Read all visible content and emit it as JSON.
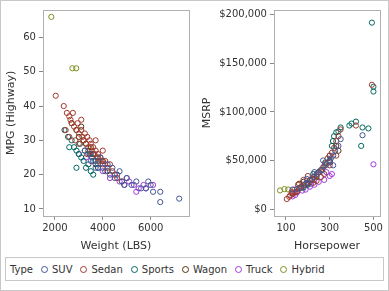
{
  "chart_data": [
    {
      "type": "scatter",
      "x_label": "Weight (LBS)",
      "y_label": "MPG (Highway)",
      "xlim": [
        1500,
        7600
      ],
      "xticks": [
        2000,
        4000,
        6000
      ],
      "ylim": [
        8,
        68
      ],
      "yticks": [
        10,
        20,
        30,
        40,
        50,
        60
      ],
      "grid": false,
      "legend": "bottom",
      "series": [
        {
          "name": "SUV",
          "color": "#445694",
          "marker": "circle",
          "x": [
            3250,
            3500,
            3600,
            3800,
            4000,
            4100,
            4300,
            4400,
            4500,
            4600,
            4800,
            4900,
            5000,
            5200,
            5400,
            5600,
            5800,
            6000,
            6400,
            5900,
            3900,
            4200,
            4700,
            3700,
            6100,
            6400,
            7190
          ],
          "values": [
            27,
            26,
            24,
            23,
            22,
            21,
            20,
            22,
            19,
            20,
            18,
            17,
            19,
            17,
            18,
            16,
            16,
            17,
            15,
            18,
            25,
            23,
            21,
            22,
            15,
            12,
            13
          ]
        },
        {
          "name": "Sedan",
          "color": "#A23A2E",
          "marker": "circle",
          "x": [
            2035,
            2370,
            2500,
            2600,
            2650,
            2700,
            2750,
            2800,
            2900,
            2950,
            3000,
            3100,
            3150,
            3200,
            3250,
            3300,
            3350,
            3400,
            3450,
            3500,
            3550,
            3600,
            3650,
            3700,
            3750,
            3800,
            3850,
            3900,
            3950,
            4000,
            4100,
            4200,
            4300,
            4400,
            4500,
            2450,
            2600,
            3000,
            3350,
            3700,
            4000,
            3100,
            2850,
            4600,
            4800
          ],
          "values": [
            43,
            40,
            38,
            37,
            36,
            35,
            38,
            34,
            33,
            35,
            32,
            33,
            31,
            30,
            32,
            29,
            31,
            28,
            30,
            29,
            27,
            28,
            26,
            27,
            25,
            26,
            24,
            25,
            24,
            23,
            24,
            22,
            23,
            21,
            20,
            33,
            31,
            29,
            26,
            30,
            27,
            36,
            30,
            19,
            18
          ]
        },
        {
          "name": "Sports",
          "color": "#01665E",
          "marker": "circle",
          "x": [
            2400,
            2550,
            2700,
            2800,
            2900,
            3000,
            3100,
            3200,
            3300,
            3400,
            3500,
            3600,
            2600,
            3050,
            3450,
            3700,
            3800,
            2900,
            3250,
            3550
          ],
          "values": [
            33,
            31,
            30,
            28,
            27,
            26,
            25,
            24,
            22,
            23,
            21,
            20,
            28,
            29,
            26,
            24,
            22,
            22,
            27,
            25
          ]
        },
        {
          "name": "Wagon",
          "color": "#543005",
          "marker": "circle",
          "x": [
            2700,
            2900,
            3000,
            3200,
            3300,
            3400,
            3500,
            3600,
            3800,
            4000,
            3100,
            3700,
            4200
          ],
          "values": [
            35,
            33,
            31,
            30,
            29,
            27,
            28,
            26,
            25,
            24,
            34,
            23,
            21
          ]
        },
        {
          "name": "Truck",
          "color": "#9D3CDB",
          "marker": "circle",
          "x": [
            3000,
            3300,
            3500,
            3800,
            4000,
            4300,
            4500,
            4700,
            4900,
            5100,
            5300,
            5500,
            5700,
            5800,
            6100,
            5000,
            4100,
            3600,
            5400
          ],
          "values": [
            26,
            25,
            24,
            22,
            21,
            19,
            20,
            18,
            17,
            18,
            17,
            16,
            17,
            16,
            17,
            19,
            23,
            26,
            15
          ]
        },
        {
          "name": "Hybrid",
          "color": "#7F8E1F",
          "marker": "circle",
          "x": [
            1850,
            2890,
            2730
          ],
          "values": [
            66,
            51,
            51
          ]
        }
      ]
    },
    {
      "type": "scatter",
      "x_label": "Horsepower",
      "y_label": "MSRP",
      "xlim": [
        45,
        530
      ],
      "xticks": [
        100,
        300,
        500
      ],
      "ylim": [
        -7000,
        205000
      ],
      "yticks": [
        {
          "value": 0,
          "label": "$0"
        },
        {
          "value": 50000,
          "label": "$50,000"
        },
        {
          "value": 100000,
          "label": "$100,000"
        },
        {
          "value": 150000,
          "label": "$150,000"
        },
        {
          "value": 200000,
          "label": "$200,000"
        }
      ],
      "grid": false,
      "legend": "bottom",
      "series": [
        {
          "name": "SUV",
          "color": "#445694",
          "marker": "circle",
          "x": [
            130,
            150,
            165,
            185,
            200,
            210,
            225,
            240,
            250,
            265,
            275,
            285,
            300,
            305,
            316,
            325,
            340,
            350,
            450,
            316,
            195,
            230,
            270
          ],
          "values": [
            20000,
            20500,
            22000,
            25000,
            27000,
            30000,
            33000,
            36000,
            38000,
            40000,
            44000,
            46000,
            49000,
            52000,
            55000,
            60000,
            65000,
            72000,
            76000,
            45000,
            31000,
            38000,
            50000
          ]
        },
        {
          "name": "Sedan",
          "color": "#A23A2E",
          "marker": "circle",
          "x": [
            104,
            115,
            120,
            130,
            140,
            150,
            160,
            170,
            180,
            190,
            200,
            210,
            220,
            230,
            240,
            250,
            260,
            270,
            280,
            290,
            300,
            310,
            320,
            330,
            340,
            350,
            225,
            240,
            260,
            300,
            302,
            275,
            330,
            493,
            420,
            138,
            155,
            200,
            180,
            126
          ],
          "values": [
            10280,
            12600,
            14000,
            15500,
            17000,
            18000,
            21000,
            23000,
            24000,
            26000,
            27000,
            29000,
            31000,
            33000,
            35000,
            38000,
            40000,
            43000,
            47000,
            52000,
            55000,
            58000,
            63000,
            70000,
            75000,
            82000,
            27000,
            29000,
            33000,
            45000,
            48000,
            36000,
            55000,
            128000,
            86000,
            20000,
            25000,
            34000,
            30000,
            17500
          ]
        },
        {
          "name": "Sports",
          "color": "#01665E",
          "marker": "circle",
          "x": [
            180,
            200,
            240,
            260,
            280,
            300,
            310,
            320,
            340,
            350,
            390,
            400,
            420,
            450,
            477,
            493,
            500,
            500,
            444,
            225,
            315,
            330,
            300
          ],
          "values": [
            22000,
            25000,
            33000,
            40000,
            48000,
            55000,
            65000,
            75000,
            80000,
            84000,
            86000,
            88000,
            90000,
            84000,
            83000,
            192000,
            121000,
            126000,
            65000,
            36000,
            70000,
            79000,
            50000
          ]
        },
        {
          "name": "Wagon",
          "color": "#543005",
          "marker": "circle",
          "x": [
            130,
            150,
            170,
            200,
            220,
            250,
            280,
            300,
            340,
            180,
            160,
            330
          ],
          "values": [
            16000,
            18000,
            22000,
            26000,
            30000,
            38000,
            45000,
            49000,
            60000,
            28000,
            26000,
            65000
          ]
        },
        {
          "name": "Truck",
          "color": "#9D3CDB",
          "marker": "circle",
          "x": [
            130,
            143,
            150,
            175,
            190,
            210,
            230,
            250,
            275,
            300,
            310,
            500,
            285,
            215
          ],
          "values": [
            13000,
            14500,
            17000,
            19000,
            20000,
            23000,
            25000,
            28000,
            30000,
            34000,
            36000,
            46000,
            38000,
            26000
          ]
        },
        {
          "name": "Hybrid",
          "color": "#7F8E1F",
          "marker": "circle",
          "x": [
            73,
            110,
            93
          ],
          "values": [
            19110,
            20140,
            20510
          ]
        }
      ]
    }
  ],
  "legend_title": "Type"
}
